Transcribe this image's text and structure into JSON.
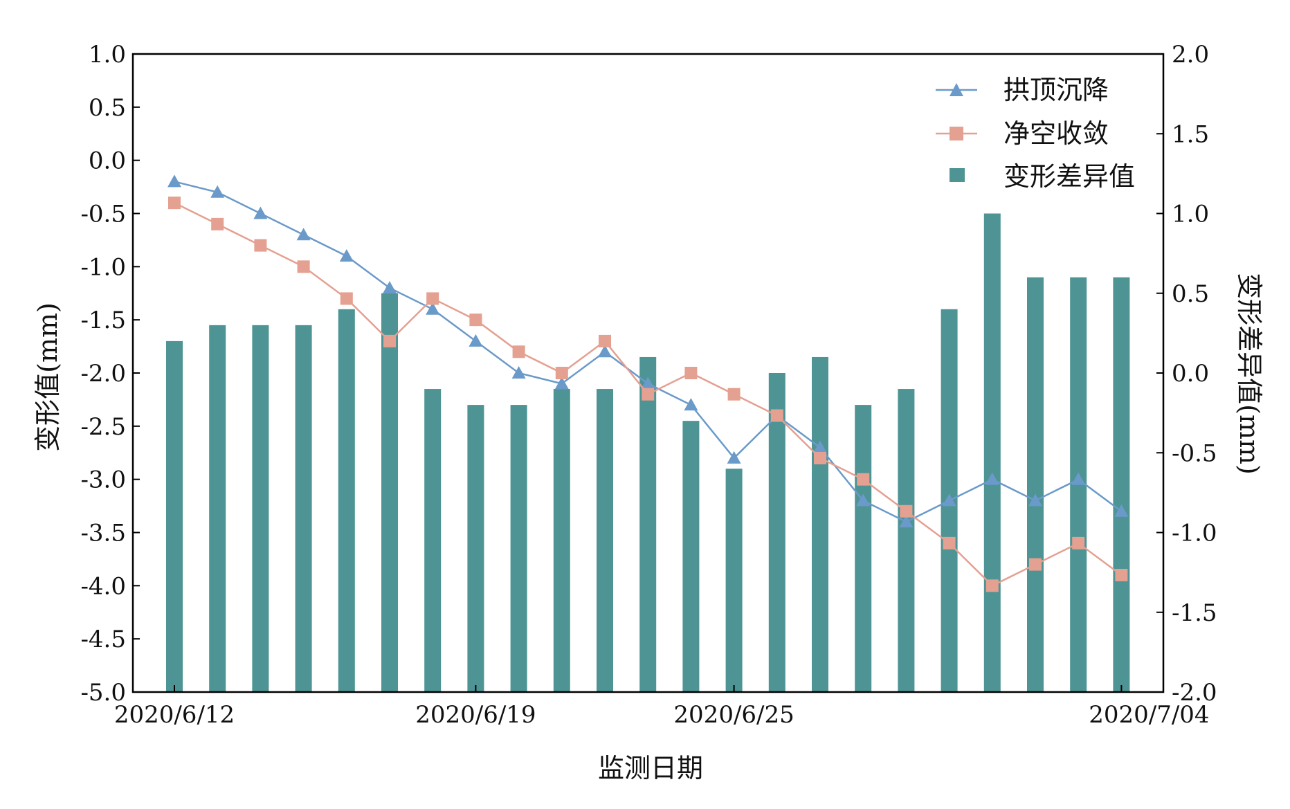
{
  "chart_data": {
    "type": "bar+line",
    "x_tick_labels": [
      {
        "label": "2020/6/12",
        "index": 0
      },
      {
        "label": "2020/6/19",
        "index": 7
      },
      {
        "label": "2020/6/25",
        "index": 13
      },
      {
        "label": "2020/7/04",
        "index": 22
      }
    ],
    "xlabel": "监测日期",
    "ylabel_left": "变形值(mm)",
    "ylabel_right": "变形差异值(mm)",
    "ylim_left": [
      -5.0,
      1.0
    ],
    "ylim_right": [
      -2.0,
      2.0
    ],
    "yticks_left": [
      "-5.0",
      "-4.5",
      "-4.0",
      "-3.5",
      "-3.0",
      "-2.5",
      "-2.0",
      "-1.5",
      "-1.0",
      "-0.5",
      "0.0",
      "0.5",
      "1.0"
    ],
    "yticks_right": [
      "-2.0",
      "-1.5",
      "-1.0",
      "-0.5",
      "0.0",
      "0.5",
      "1.0",
      "1.5",
      "2.0"
    ],
    "grid": false,
    "legend_position": "top-right",
    "series": [
      {
        "name": "拱顶沉降",
        "kind": "line",
        "axis": "left",
        "marker": "triangle",
        "color": "#6a9ac9",
        "values": [
          -0.2,
          -0.3,
          -0.5,
          -0.7,
          -0.9,
          -1.2,
          -1.4,
          -1.7,
          -2.0,
          -2.1,
          -1.8,
          -2.1,
          -2.3,
          -2.8,
          -2.4,
          -2.7,
          -3.2,
          -3.4,
          -3.2,
          -3.0,
          -3.2,
          -3.0,
          -3.3
        ]
      },
      {
        "name": "净空收敛",
        "kind": "line",
        "axis": "left",
        "marker": "square",
        "color": "#e4a090",
        "values": [
          -0.4,
          -0.6,
          -0.8,
          -1.0,
          -1.3,
          -1.7,
          -1.3,
          -1.5,
          -1.8,
          -2.0,
          -1.7,
          -2.2,
          -2.0,
          -2.2,
          -2.4,
          -2.8,
          -3.0,
          -3.3,
          -3.6,
          -4.0,
          -3.8,
          -3.6,
          -3.9
        ]
      },
      {
        "name": "变形差异值",
        "kind": "bar",
        "axis": "right",
        "color": "#4e9494",
        "values": [
          0.2,
          0.3,
          0.3,
          0.3,
          0.4,
          0.5,
          -0.1,
          -0.2,
          -0.2,
          -0.1,
          -0.1,
          0.1,
          -0.3,
          -0.6,
          0.0,
          0.1,
          -0.2,
          -0.1,
          0.4,
          1.0,
          0.6,
          0.6,
          0.6
        ]
      }
    ]
  }
}
